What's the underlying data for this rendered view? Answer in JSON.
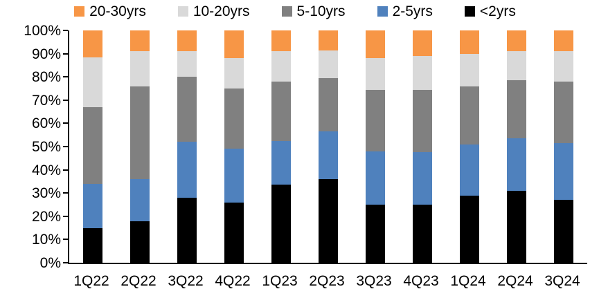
{
  "chart_data": {
    "type": "bar",
    "variant": "stacked-100-percent-column",
    "title": "",
    "xlabel": "",
    "ylabel": "",
    "grid": false,
    "legend_position": "top",
    "background_color": "#FFFFFF",
    "axis_color": "#000000",
    "ylim": [
      0,
      100
    ],
    "y_tick_labels": [
      "0%",
      "10%",
      "20%",
      "30%",
      "40%",
      "50%",
      "60%",
      "70%",
      "80%",
      "90%",
      "100%"
    ],
    "y_tick_values": [
      0,
      10,
      20,
      30,
      40,
      50,
      60,
      70,
      80,
      90,
      100
    ],
    "categories": [
      "1Q22",
      "2Q22",
      "3Q22",
      "4Q22",
      "1Q23",
      "2Q23",
      "3Q23",
      "4Q23",
      "1Q24",
      "2Q24",
      "3Q24"
    ],
    "series": [
      {
        "name": "<2yrs",
        "color": "#000000",
        "values": [
          15,
          18,
          28,
          26,
          33.5,
          36,
          25,
          25,
          29,
          31,
          27
        ]
      },
      {
        "name": "2-5yrs",
        "color": "#4F81BD",
        "values": [
          19,
          18,
          24,
          23,
          19,
          20.5,
          23,
          22.5,
          22,
          22.5,
          24.5
        ]
      },
      {
        "name": "5-10yrs",
        "color": "#808080",
        "values": [
          33,
          40,
          28,
          26,
          25.5,
          23,
          26.5,
          27,
          25,
          25,
          26.5
        ]
      },
      {
        "name": "10-20yrs",
        "color": "#D9D9D9",
        "values": [
          21.5,
          15,
          11,
          13,
          13,
          12,
          13.5,
          14.5,
          14,
          12.5,
          13
        ]
      },
      {
        "name": "20-30yrs",
        "color": "#F79646",
        "values": [
          11.5,
          9,
          9,
          12,
          9,
          8.5,
          12,
          11,
          10,
          9,
          9
        ]
      }
    ],
    "legend_order": [
      "20-30yrs",
      "10-20yrs",
      "5-10yrs",
      "2-5yrs",
      "<2yrs"
    ]
  }
}
